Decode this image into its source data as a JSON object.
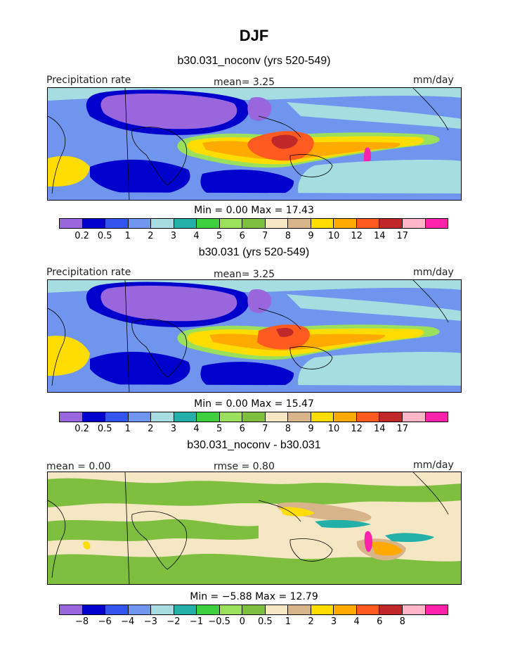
{
  "figure": {
    "title": "DJF",
    "palette_precip": [
      "#9966dd",
      "#0000cc",
      "#3355ee",
      "#6f95ee",
      "#a6dde0",
      "#22b0a8",
      "#3ecf3e",
      "#9be05c",
      "#7fbf3f",
      "#f5e6c4",
      "#d8b48a",
      "#ffdd00",
      "#ffaa00",
      "#ff5a1f",
      "#c0282a",
      "#ffb6c8",
      "#ff22aa"
    ],
    "palette_diff": [
      "#9966dd",
      "#0000cc",
      "#3355ee",
      "#6f95ee",
      "#a6dde0",
      "#22b0a8",
      "#3ecf3e",
      "#9be05c",
      "#7fbf3f",
      "#f5e6c4",
      "#d8b48a",
      "#ffdd00",
      "#ffaa00",
      "#ff5a1f",
      "#c0282a",
      "#ffb6c8",
      "#ff22aa"
    ]
  },
  "panels": [
    {
      "title": "b30.031_noconv (yrs 520-549)",
      "left_label": "Precipitation rate",
      "center_label": "mean=   3.25",
      "units": "mm/day",
      "minmax": "Min =    0.00  Max =   17.43",
      "ticks": [
        "0.2",
        "0.5",
        "1",
        "2",
        "3",
        "4",
        "5",
        "6",
        "7",
        "8",
        "9",
        "10",
        "12",
        "14",
        "17"
      ]
    },
    {
      "title": "b30.031 (yrs 520-549)",
      "left_label": "Precipitation rate",
      "center_label": "mean=   3.25",
      "units": "mm/day",
      "minmax": "Min =    0.00  Max =   15.47",
      "ticks": [
        "0.2",
        "0.5",
        "1",
        "2",
        "3",
        "4",
        "5",
        "6",
        "7",
        "8",
        "9",
        "10",
        "12",
        "14",
        "17"
      ]
    },
    {
      "title": "b30.031_noconv - b30.031",
      "left_label": "mean =    0.00",
      "center_label": "rmse =    0.80",
      "units": "mm/day",
      "minmax": "Min =   −5.88  Max =   12.79",
      "ticks": [
        "−8",
        "−6",
        "−4",
        "−3",
        "−2",
        "−1",
        "−0.5",
        "0",
        "0.5",
        "1",
        "2",
        "3",
        "4",
        "6",
        "8"
      ]
    }
  ]
}
